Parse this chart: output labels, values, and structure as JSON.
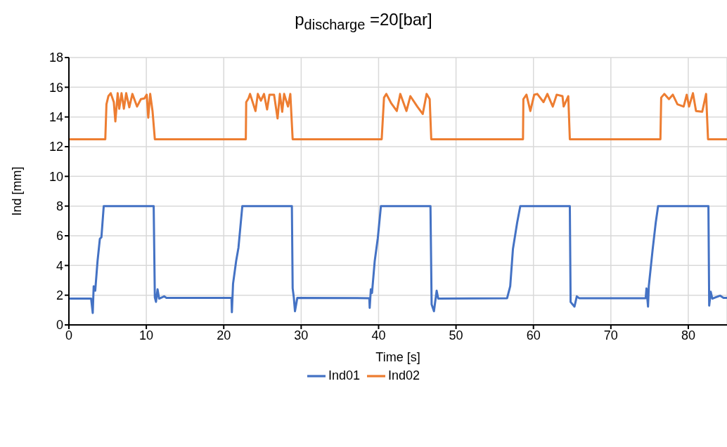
{
  "chart_data": {
    "type": "line",
    "title": "p$_{discharge}$ =20[bar]",
    "xlabel": "Time [s]",
    "ylabel": "Ind [mm]",
    "xlim": [
      0,
      85
    ],
    "xticks": [
      0,
      10,
      20,
      30,
      40,
      50,
      60,
      70,
      80
    ],
    "ylim": [
      0,
      18
    ],
    "yticks": [
      0,
      2,
      4,
      6,
      8,
      10,
      12,
      14,
      16,
      18
    ],
    "grid": true,
    "legend": "bottom",
    "marker": "none",
    "line_style": "solid",
    "series": [
      {
        "name": "Ind01",
        "color": "#4472c4",
        "x": [
          0,
          2.87,
          3.08,
          3.2,
          3.4,
          3.7,
          4.0,
          4.2,
          4.5,
          10.95,
          11.1,
          11.25,
          11.45,
          11.65,
          12.3,
          12.6,
          21.0,
          21.05,
          21.2,
          21.6,
          21.9,
          22.4,
          28.8,
          28.9,
          29.05,
          29.2,
          29.5,
          38.8,
          38.85,
          39.0,
          39.15,
          39.5,
          39.9,
          40.3,
          46.7,
          46.85,
          47.15,
          47.5,
          47.7,
          56.6,
          57.0,
          57.35,
          57.9,
          58.3,
          64.7,
          64.8,
          65.3,
          65.6,
          65.9,
          74.5,
          74.6,
          74.8,
          74.9,
          75.4,
          75.8,
          76.1,
          82.6,
          82.7,
          82.9,
          83.1,
          84.1,
          84.55,
          85
        ],
        "values": [
          1.77,
          1.77,
          0.8,
          2.6,
          2.3,
          4.3,
          5.8,
          5.9,
          8,
          8,
          1.85,
          1.55,
          2.4,
          1.77,
          1.92,
          1.82,
          1.82,
          0.85,
          2.77,
          4.3,
          5.2,
          8,
          8,
          2.46,
          1.85,
          0.92,
          1.82,
          1.8,
          1.15,
          2.4,
          2.15,
          4.3,
          5.85,
          8,
          8,
          1.38,
          0.92,
          2.3,
          1.77,
          1.8,
          2.6,
          5.1,
          6.9,
          8,
          8,
          1.54,
          1.23,
          1.92,
          1.8,
          1.8,
          2.46,
          1.23,
          2.6,
          5.1,
          6.9,
          8,
          8,
          1.3,
          2.23,
          1.77,
          1.97,
          1.82,
          1.82
        ]
      },
      {
        "name": "Ind02",
        "color": "#ed7d31",
        "x": [
          0,
          4.7,
          4.85,
          5.1,
          5.4,
          5.8,
          6.0,
          6.3,
          6.5,
          6.8,
          7.1,
          7.4,
          7.8,
          8.2,
          8.8,
          9.3,
          9.75,
          10.05,
          10.25,
          10.5,
          10.8,
          11.1,
          22.85,
          22.9,
          23.2,
          23.4,
          24.1,
          24.4,
          24.8,
          25.2,
          25.6,
          25.9,
          26.5,
          26.95,
          27.25,
          27.55,
          27.8,
          28.3,
          28.6,
          28.9,
          40.4,
          40.7,
          41.0,
          41.6,
          42.35,
          42.8,
          43.6,
          44.1,
          45.0,
          45.7,
          46.2,
          46.6,
          46.8,
          58.65,
          58.7,
          59.1,
          59.6,
          60.1,
          60.5,
          61.3,
          61.8,
          62.5,
          63.0,
          63.75,
          63.9,
          64.5,
          64.7,
          76.4,
          76.5,
          76.9,
          77.5,
          78.0,
          78.6,
          79.4,
          79.8,
          80.1,
          80.6,
          81.0,
          81.8,
          82.3,
          82.55,
          85
        ],
        "values": [
          12.5,
          12.5,
          14.85,
          15.4,
          15.6,
          15.0,
          13.7,
          15.6,
          14.55,
          15.6,
          14.55,
          15.6,
          14.65,
          15.55,
          14.7,
          15.2,
          15.25,
          15.5,
          13.95,
          15.55,
          14.4,
          12.5,
          12.5,
          15.0,
          15.25,
          15.55,
          14.4,
          15.55,
          15.1,
          15.55,
          14.5,
          15.5,
          15.5,
          13.9,
          15.55,
          14.35,
          15.55,
          14.7,
          15.55,
          12.5,
          12.5,
          15.3,
          15.55,
          14.95,
          14.4,
          15.55,
          14.4,
          15.4,
          14.7,
          14.2,
          15.55,
          15.2,
          12.5,
          12.5,
          15.2,
          15.5,
          14.4,
          15.5,
          15.55,
          15.0,
          15.55,
          14.7,
          15.5,
          15.4,
          14.7,
          15.4,
          12.5,
          12.5,
          15.3,
          15.55,
          15.2,
          15.5,
          14.85,
          14.7,
          15.5,
          14.7,
          15.6,
          14.4,
          14.35,
          15.55,
          12.5,
          12.5
        ]
      }
    ]
  }
}
